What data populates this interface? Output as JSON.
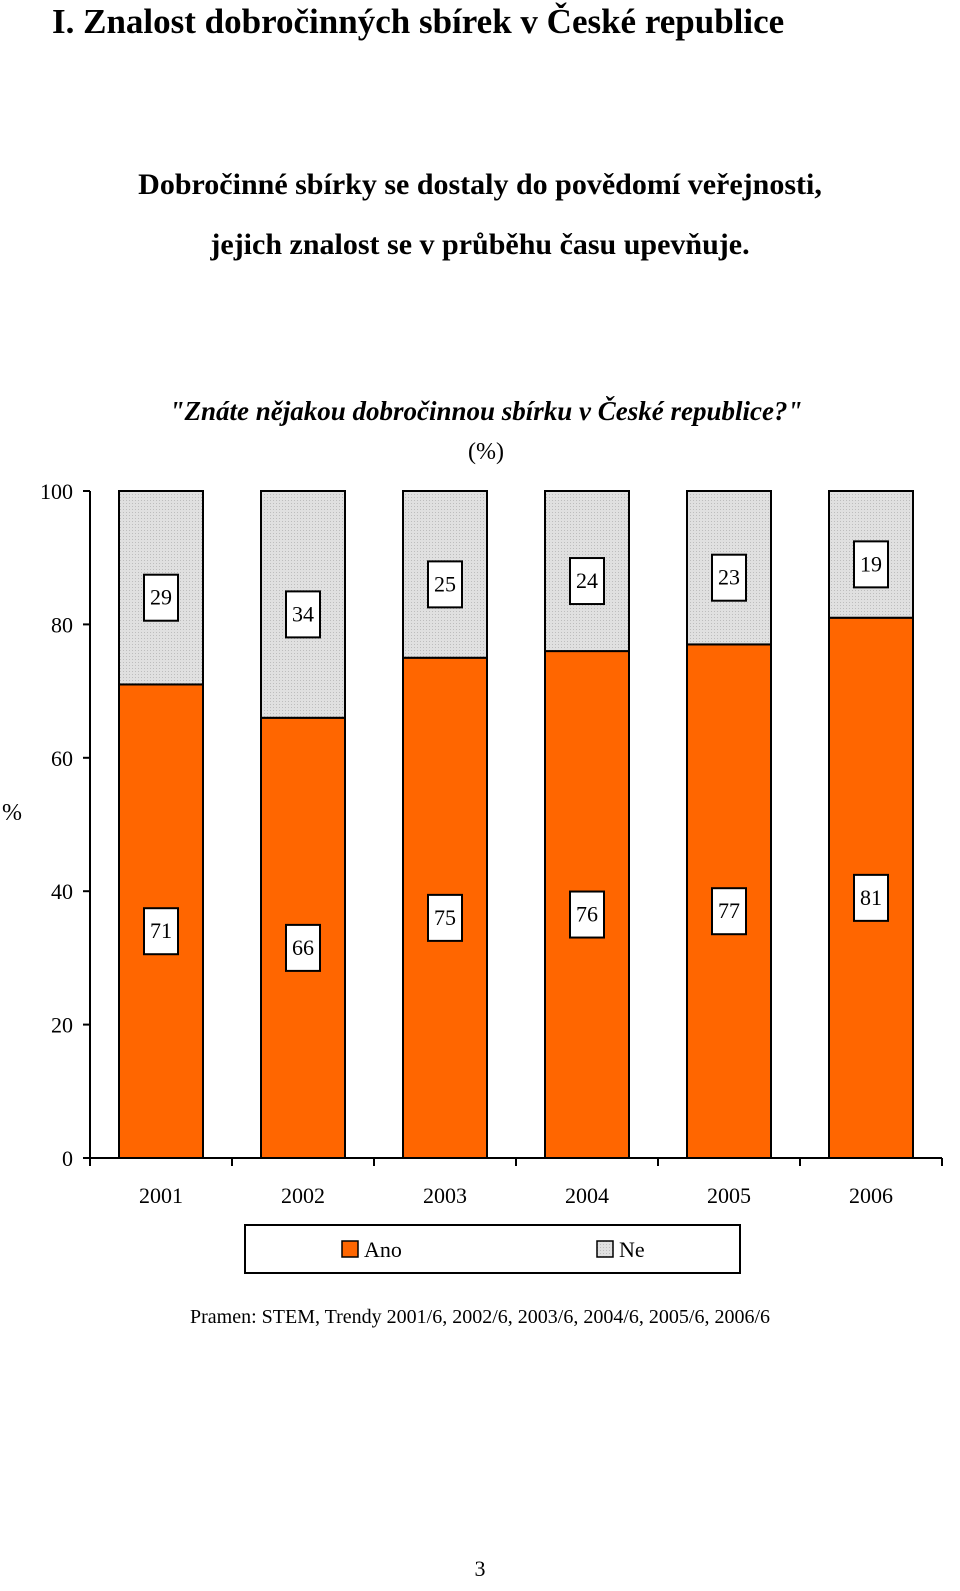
{
  "document": {
    "section_title": "I. Znalost dobročinných sbírek v České republice",
    "subtitle_lines": [
      "Dobročinné sbírky se dostaly do povědomí veřejnosti,",
      "jejich znalost se v průběhu času upevňuje."
    ],
    "source": "Pramen: STEM, Trendy 2001/6, 2002/6, 2003/6, 2004/6, 2005/6, 2006/6",
    "page_number": "3"
  },
  "chart_data": {
    "type": "bar",
    "stacked": true,
    "title": "\"Znáte nějakou dobročinnou sbírku v České republice?\"",
    "subtitle": "(%)",
    "xlabel": "",
    "ylabel": "%",
    "ylim": [
      0,
      100
    ],
    "yticks": [
      0,
      20,
      40,
      60,
      80,
      100
    ],
    "grid": false,
    "legend_position": "bottom",
    "categories": [
      "2001",
      "2002",
      "2003",
      "2004",
      "2005",
      "2006"
    ],
    "series": [
      {
        "name": "Ano",
        "color": "#ff6600",
        "values": [
          71,
          66,
          75,
          76,
          77,
          81
        ]
      },
      {
        "name": "Ne",
        "color": "#dddddd",
        "values": [
          29,
          34,
          25,
          24,
          23,
          19
        ]
      }
    ]
  }
}
